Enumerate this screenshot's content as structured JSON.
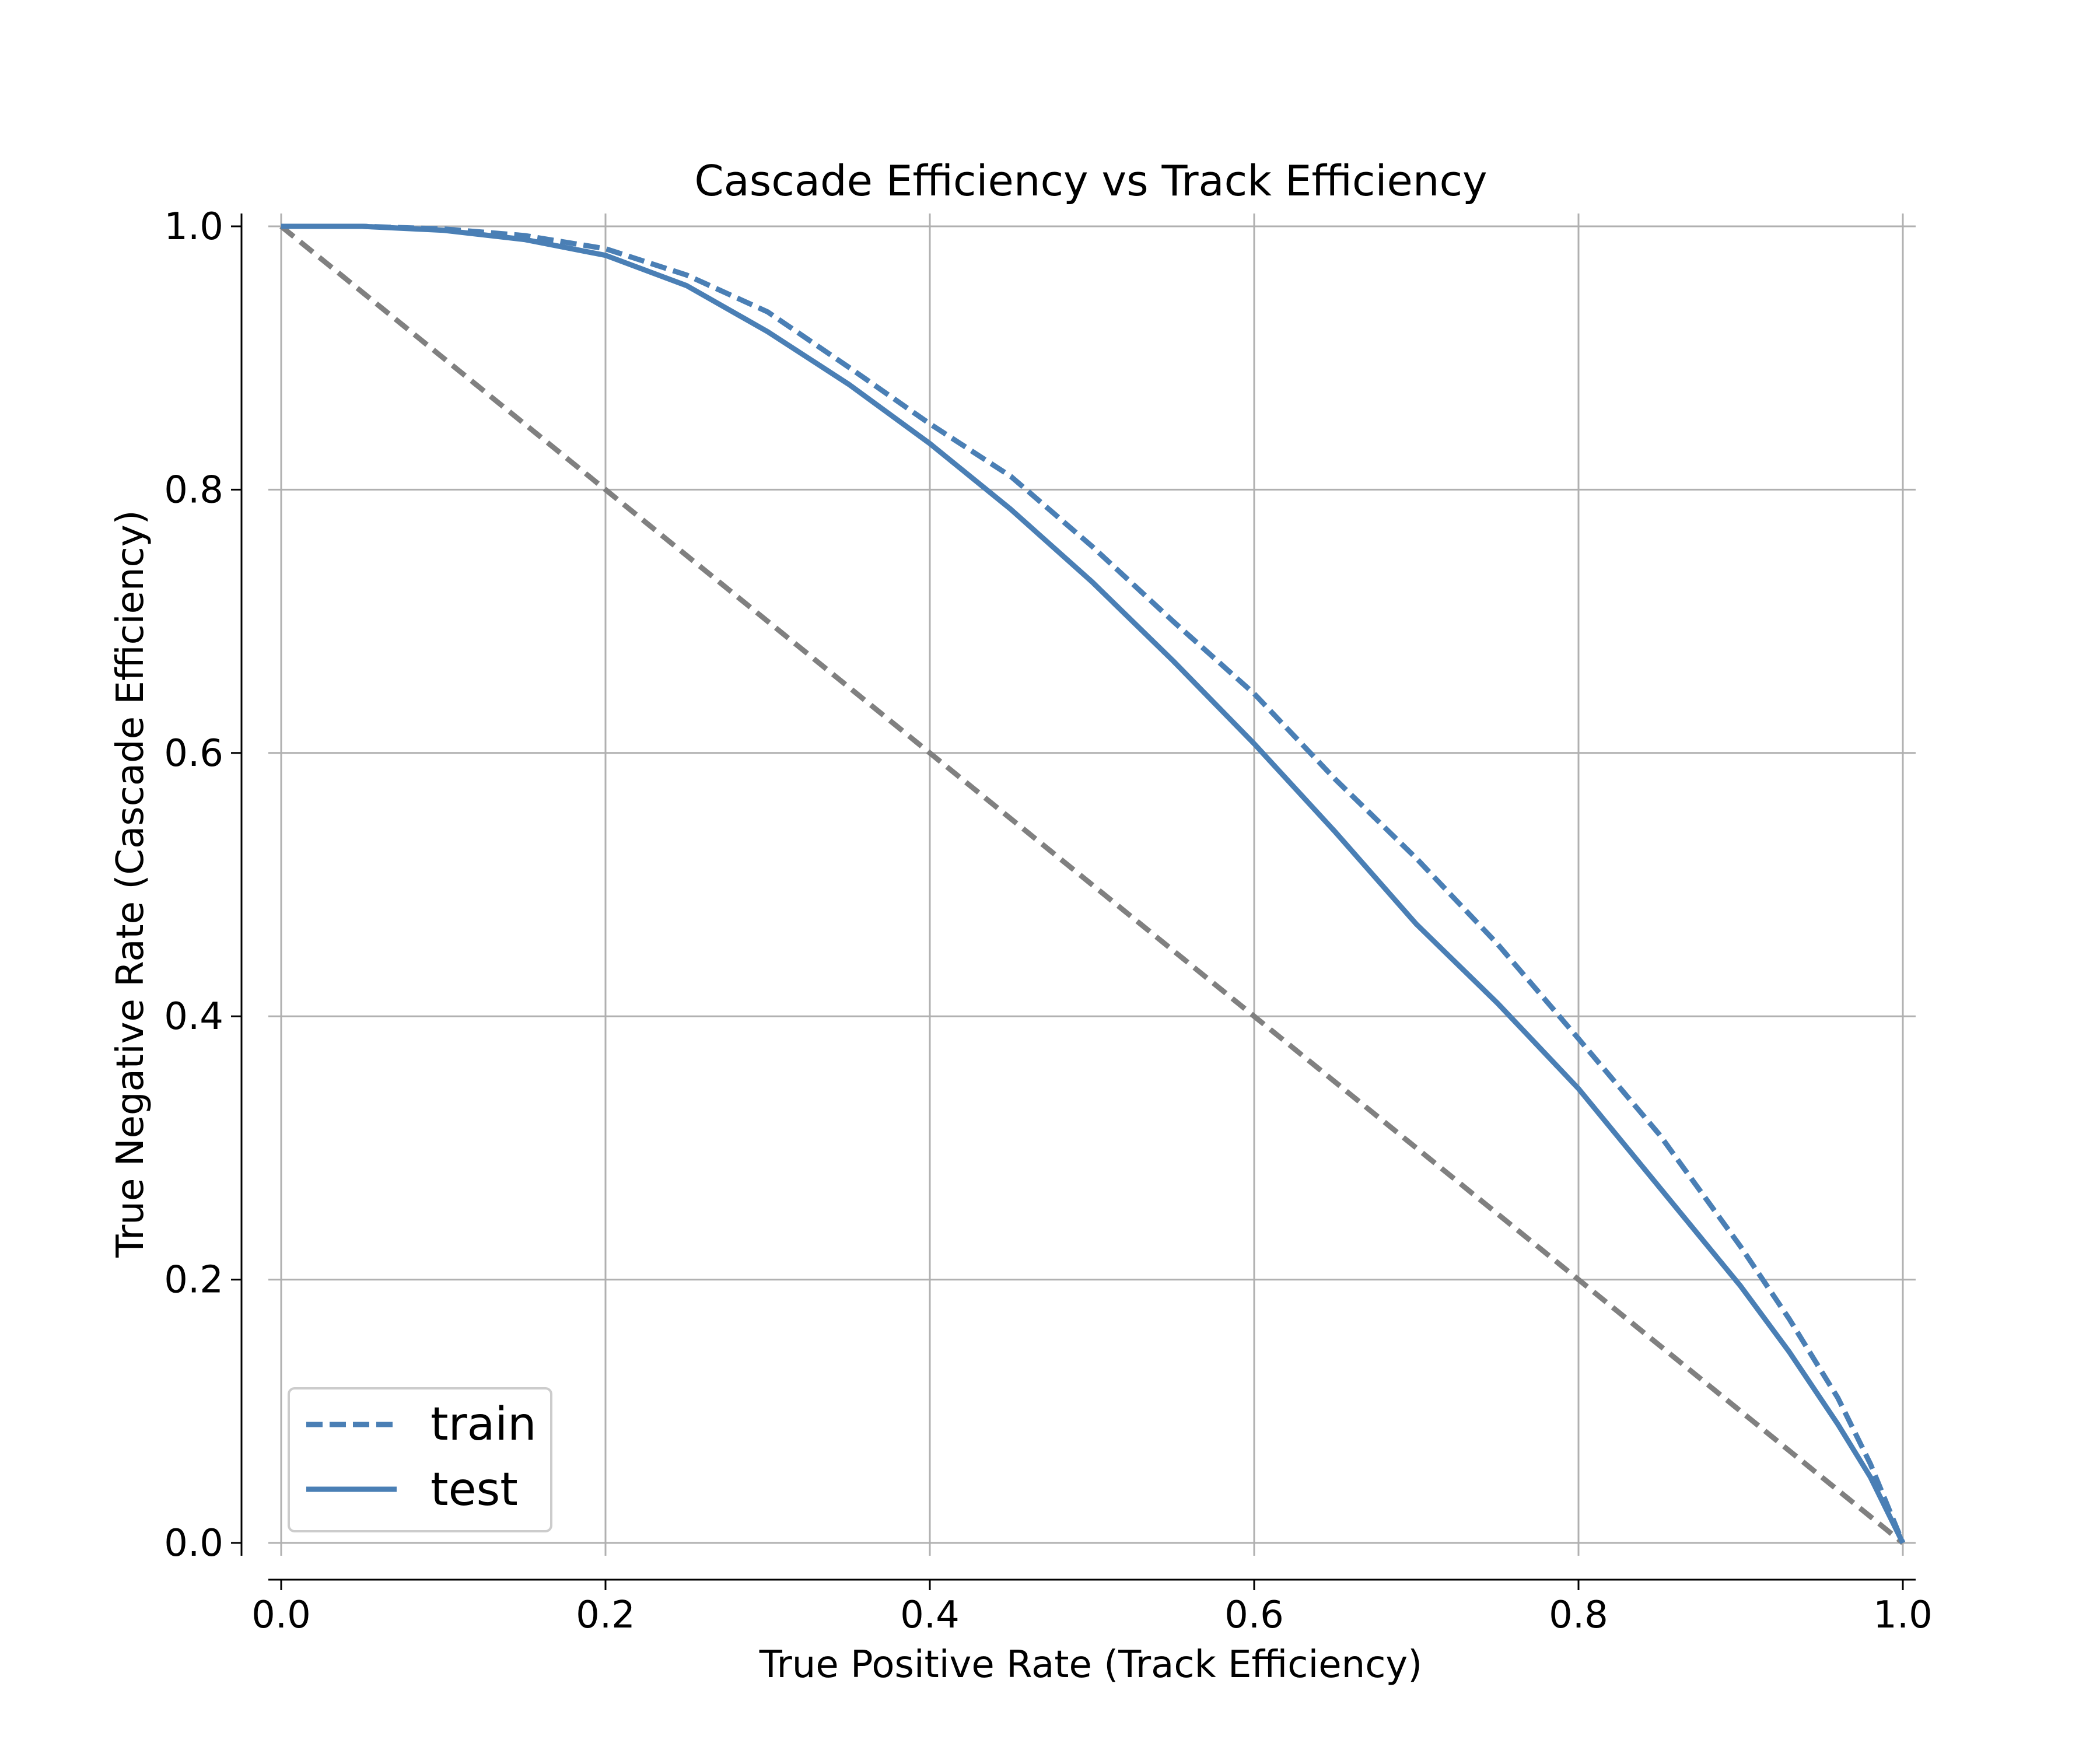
{
  "chart_data": {
    "type": "line",
    "title": "Cascade Efficiency vs Track Efficiency",
    "xlabel": "True Positive Rate (Track Efficiency)",
    "ylabel": "True Negative Rate (Cascade Efficiency)",
    "xlim": [
      0.0,
      1.0
    ],
    "ylim": [
      0.0,
      1.0
    ],
    "xticks": [
      "0.0",
      "0.2",
      "0.4",
      "0.6",
      "0.8",
      "1.0"
    ],
    "yticks": [
      "0.0",
      "0.2",
      "0.4",
      "0.6",
      "0.8",
      "1.0"
    ],
    "grid": true,
    "legend_position": "lower-left",
    "colors": {
      "series": "#4a7fb5",
      "diagonal": "#808080",
      "grid": "#b0b0b0"
    },
    "series": [
      {
        "name": "train",
        "style": "dashed",
        "x": [
          0.0,
          0.05,
          0.1,
          0.15,
          0.2,
          0.25,
          0.3,
          0.35,
          0.4,
          0.45,
          0.5,
          0.55,
          0.6,
          0.65,
          0.7,
          0.75,
          0.8,
          0.85,
          0.9,
          0.93,
          0.96,
          0.98,
          1.0
        ],
        "y": [
          1.0,
          1.0,
          0.998,
          0.993,
          0.983,
          0.963,
          0.935,
          0.893,
          0.85,
          0.81,
          0.757,
          0.7,
          0.645,
          0.58,
          0.52,
          0.455,
          0.383,
          0.31,
          0.225,
          0.17,
          0.11,
          0.06,
          0.0
        ]
      },
      {
        "name": "test",
        "style": "solid",
        "x": [
          0.0,
          0.05,
          0.1,
          0.15,
          0.2,
          0.25,
          0.3,
          0.35,
          0.4,
          0.45,
          0.5,
          0.55,
          0.6,
          0.65,
          0.7,
          0.75,
          0.8,
          0.85,
          0.9,
          0.93,
          0.96,
          0.98,
          1.0
        ],
        "y": [
          1.0,
          1.0,
          0.997,
          0.99,
          0.978,
          0.955,
          0.92,
          0.88,
          0.835,
          0.785,
          0.73,
          0.67,
          0.607,
          0.54,
          0.47,
          0.41,
          0.345,
          0.27,
          0.195,
          0.145,
          0.09,
          0.05,
          0.0
        ]
      }
    ],
    "reference_line": {
      "style": "dashed",
      "x": [
        0.0,
        1.0
      ],
      "y": [
        1.0,
        0.0
      ]
    }
  }
}
